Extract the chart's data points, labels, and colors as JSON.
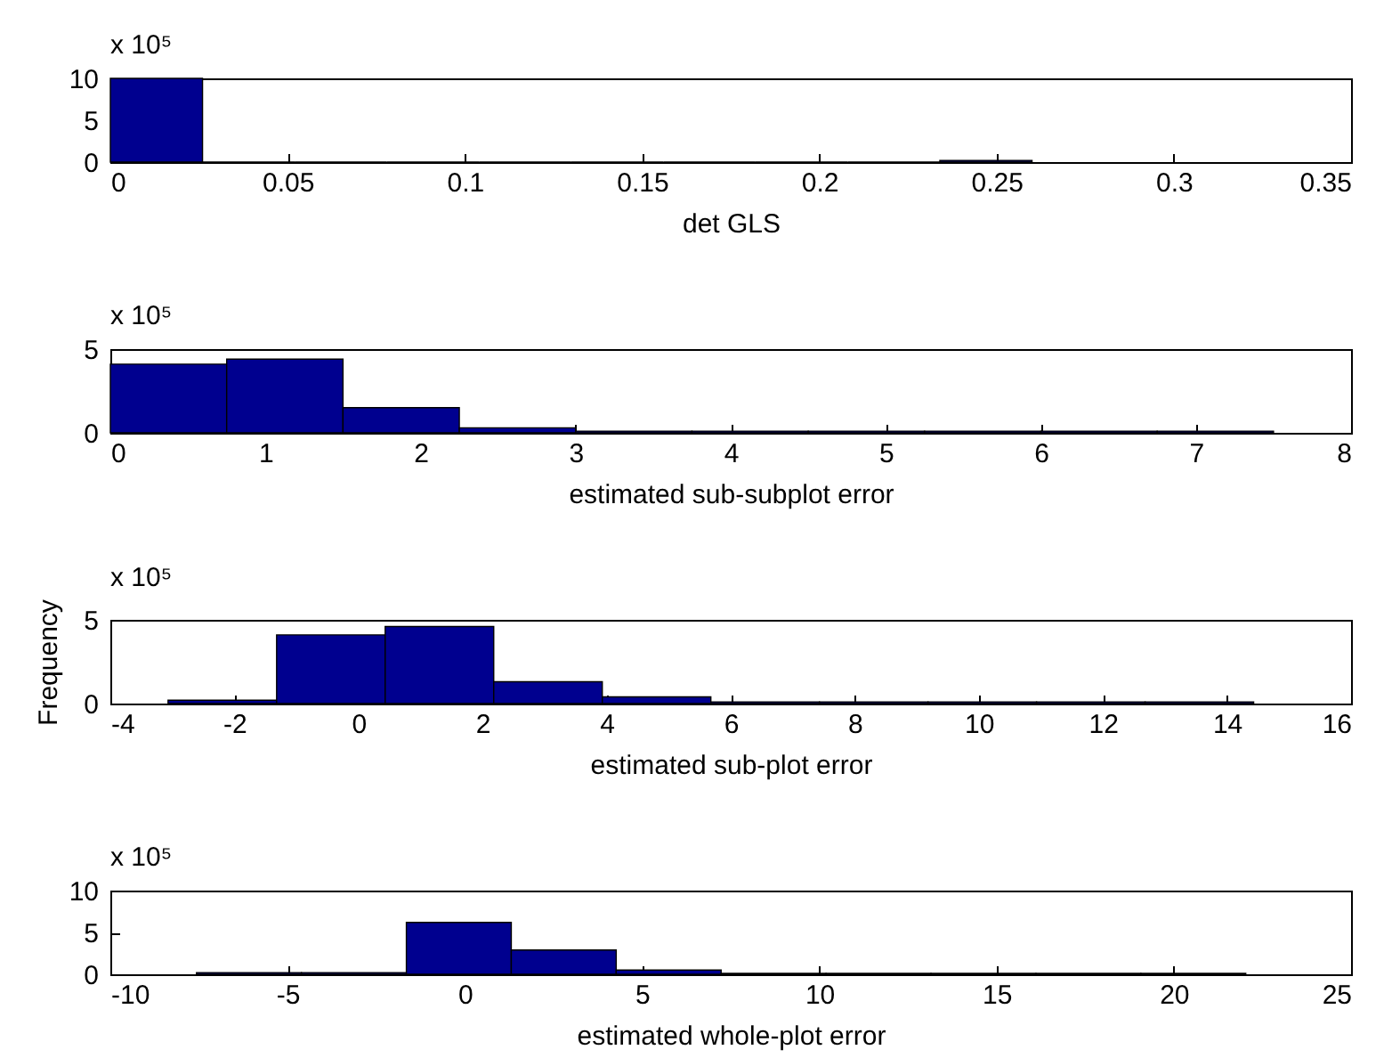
{
  "chart_data": [
    {
      "type": "histogram",
      "xlabel": "det GLS",
      "annotations": [
        "x 10⁵"
      ],
      "color": "#00008f",
      "bins": [
        0,
        0.026,
        0.052,
        0.078,
        0.104,
        0.13,
        0.156,
        0.182,
        0.208,
        0.234,
        0.26
      ],
      "values": [
        10,
        0,
        0,
        0,
        0,
        0,
        0,
        0,
        0,
        0.2
      ],
      "xlim": [
        0,
        0.35
      ],
      "xticks": [
        0,
        0.05,
        0.1,
        0.15,
        0.2,
        0.25,
        0.3,
        0.35
      ],
      "ylim": [
        0,
        10
      ],
      "yticks": [
        0,
        5,
        10
      ],
      "grid": false
    },
    {
      "type": "histogram",
      "xlabel": "estimated sub-subplot error",
      "annotations": [
        "x 10⁵"
      ],
      "color": "#00008f",
      "bins": [
        0,
        0.75,
        1.5,
        2.25,
        3,
        3.75,
        4.5,
        5.25,
        6,
        6.75,
        7.5
      ],
      "values": [
        4.1,
        4.4,
        1.5,
        0.3,
        0.1,
        0.1,
        0.1,
        0.1,
        0.1,
        0.1
      ],
      "xlim": [
        0,
        8
      ],
      "xticks": [
        0,
        1,
        2,
        3,
        4,
        5,
        6,
        7,
        8
      ],
      "ylim": [
        0,
        5
      ],
      "yticks": [
        0,
        5
      ],
      "grid": false
    },
    {
      "type": "histogram",
      "xlabel": "estimated sub-plot error",
      "ylabel": "Frequency",
      "annotations": [
        "x 10⁵"
      ],
      "color": "#00008f",
      "bins": [
        -3.07,
        -1.32,
        0.43,
        2.18,
        3.93,
        5.68,
        7.43,
        9.18,
        10.93,
        12.68,
        14.43
      ],
      "values": [
        0.2,
        4.1,
        4.6,
        1.3,
        0.4,
        0.1,
        0.1,
        0.1,
        0.1,
        0.1
      ],
      "xlim": [
        -4,
        16
      ],
      "xticks": [
        -4,
        -2,
        0,
        2,
        4,
        6,
        8,
        10,
        12,
        14,
        16
      ],
      "ylim": [
        0,
        5
      ],
      "yticks": [
        0,
        5
      ],
      "grid": false
    },
    {
      "type": "histogram",
      "xlabel": "estimated whole-plot error",
      "annotations": [
        "x 10⁵"
      ],
      "color": "#00008f",
      "bins": [
        -7.57,
        -4.61,
        -1.65,
        1.31,
        4.27,
        7.23,
        10.19,
        13.15,
        16.11,
        19.07,
        22.03
      ],
      "values": [
        0.2,
        0.2,
        6.2,
        2.9,
        0.5,
        0.1,
        0.1,
        0.1,
        0.1,
        0.1
      ],
      "xlim": [
        -10,
        25
      ],
      "xticks": [
        -10,
        -5,
        0,
        5,
        10,
        15,
        20,
        25
      ],
      "ylim": [
        0,
        10
      ],
      "yticks": [
        0,
        5,
        10
      ],
      "grid": false
    }
  ]
}
